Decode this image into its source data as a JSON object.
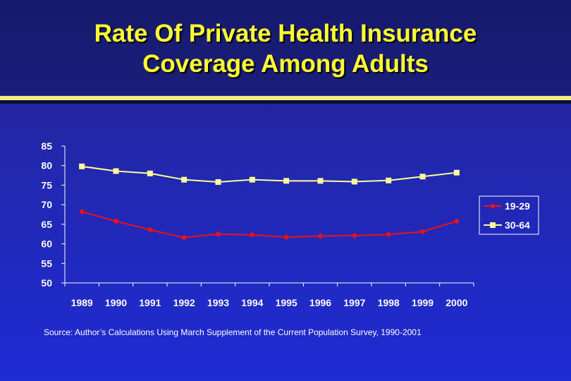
{
  "slide": {
    "title_line1": "Rate Of Private Health Insurance",
    "title_line2": "Coverage Among Adults",
    "source": "Source: Author’s Calculations Using March Supplement of the Current Population Survey, 1990-2001"
  },
  "colors": {
    "title": "#ffff33",
    "series_19_29": "#ee1111",
    "series_30_64": "#ffff99",
    "axis": "#ffffff"
  },
  "chart_data": {
    "type": "line",
    "categories": [
      "1989",
      "1990",
      "1991",
      "1992",
      "1993",
      "1994",
      "1995",
      "1996",
      "1997",
      "1998",
      "1999",
      "2000"
    ],
    "ylim": [
      50,
      85
    ],
    "yticks": [
      85,
      80,
      75,
      70,
      65,
      60,
      55,
      50
    ],
    "grid": false,
    "legend_position": "right",
    "series": [
      {
        "name": "19-29",
        "marker": "diamond",
        "values": [
          68.2,
          65.8,
          63.6,
          61.6,
          62.5,
          62.3,
          61.7,
          62.0,
          62.1,
          62.4,
          63.1,
          65.8
        ]
      },
      {
        "name": "30-64",
        "marker": "square",
        "values": [
          79.8,
          78.6,
          78.0,
          76.4,
          75.8,
          76.4,
          76.1,
          76.1,
          75.9,
          76.2,
          77.2,
          78.2
        ]
      }
    ]
  }
}
